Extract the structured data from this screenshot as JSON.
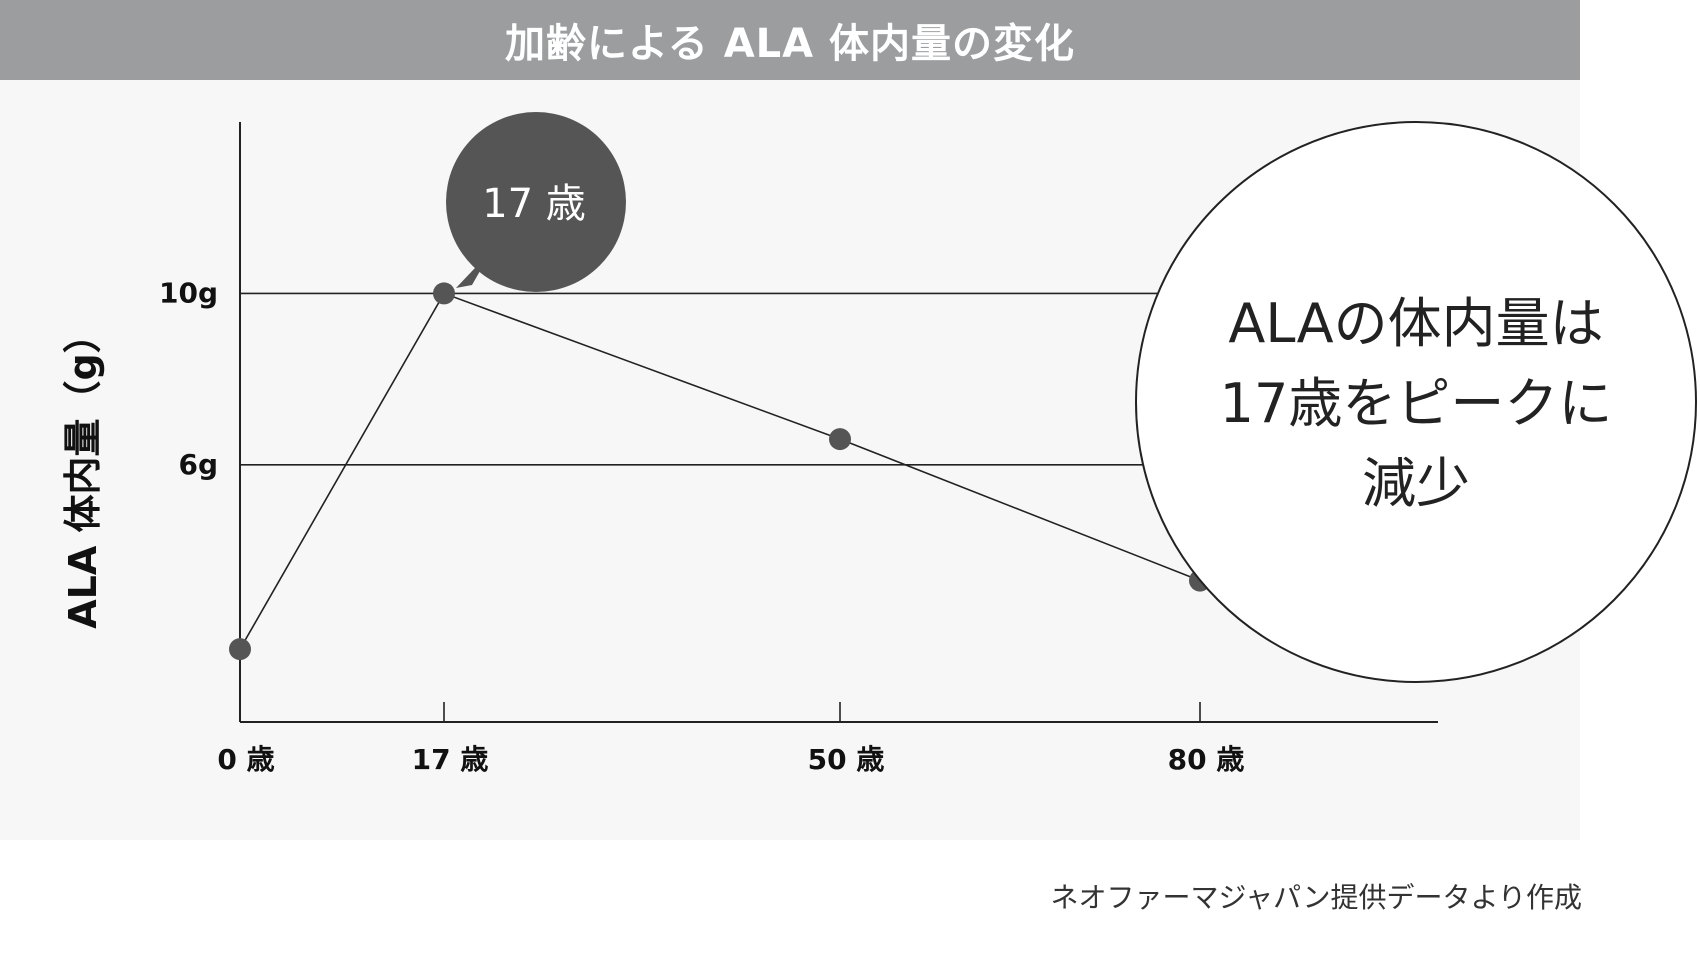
{
  "title": "加齢による ALA 体内量の変化",
  "source": "ネオファーマジャパン提供データより作成",
  "colors": {
    "header_bg": "#9b9d9f",
    "panel_bg": "#f7f7f7",
    "point": "#555555",
    "line": "#222222",
    "bubble": "#555555"
  },
  "callout": {
    "label": "17 歳",
    "lines": [
      "ALAの体内量は",
      "17歳をピークに",
      "減少"
    ]
  },
  "chart_data": {
    "type": "line",
    "title": "加齢による ALA 体内量の変化",
    "xlabel": "",
    "ylabel": "ALA 体内量（g）",
    "x": [
      0,
      17,
      50,
      80
    ],
    "x_tick_labels": [
      "0 歳",
      "17 歳",
      "50 歳",
      "80 歳"
    ],
    "y": [
      1.7,
      10,
      6.6,
      3.3
    ],
    "y_ticks": [
      6,
      10
    ],
    "y_tick_labels": [
      "6g",
      "10g"
    ],
    "ylim": [
      0,
      14
    ],
    "xlim": [
      0,
      100
    ],
    "grid": "horizontal at y ticks",
    "legend": "none"
  }
}
